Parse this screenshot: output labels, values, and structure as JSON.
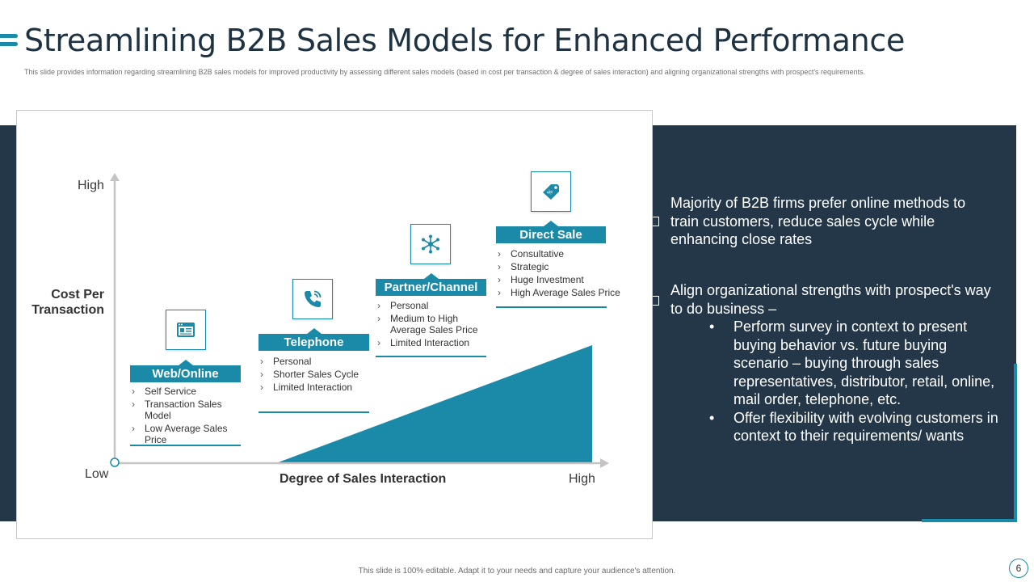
{
  "slide": {
    "title": "Streamlining B2B Sales Models for Enhanced Performance",
    "subtitle": "This slide provides information regarding streamlining B2B sales models for improved productivity by assessing different sales models (based in cost per transaction & degree of sales interaction) and aligning organizational strengths with prospect's requirements.",
    "footer": "This slide is 100% editable. Adapt it to your needs and capture your audience's attention.",
    "page_number": "6"
  },
  "colors": {
    "accent": "#1a8aa8",
    "dark_navy": "#233748",
    "title": "#1f3242"
  },
  "chart": {
    "y_high": "High",
    "y_low": "Low",
    "y_title": "Cost Per Transaction",
    "x_title": "Degree of Sales Interaction",
    "x_high": "High",
    "models": [
      {
        "name": "Web/Online",
        "icon": "web-browser-icon",
        "points": [
          "Self Service",
          "Transaction Sales Model",
          "Low Average Sales Price"
        ]
      },
      {
        "name": "Telephone",
        "icon": "phone-icon",
        "points": [
          "Personal",
          "Shorter Sales Cycle",
          "Limited Interaction"
        ]
      },
      {
        "name": "Partner/Channel",
        "icon": "network-icon",
        "points": [
          "Personal",
          "Medium to High Average Sales Price",
          "Limited Interaction"
        ]
      },
      {
        "name": "Direct Sale",
        "icon": "price-tag-icon",
        "points": [
          "Consultative",
          "Strategic",
          "Huge Investment",
          "High Average Sales Price"
        ]
      }
    ]
  },
  "panel": {
    "point1": "Majority of B2B firms prefer online methods to train customers, reduce sales cycle while enhancing close rates",
    "point2": "Align organizational strengths with prospect's way to do business –",
    "sub_points": [
      "Perform survey in context to present buying behavior vs. future buying scenario – buying through sales representatives, distributor, retail, online, mail order, telephone, etc.",
      "Offer flexibility with evolving customers in context to their requirements/ wants"
    ]
  }
}
